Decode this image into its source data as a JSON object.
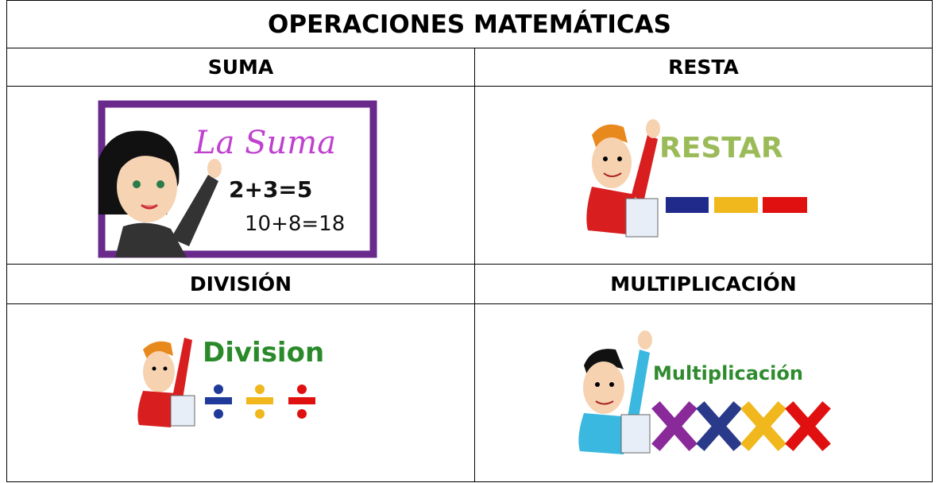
{
  "table": {
    "title": "OPERACIONES MATEMÁTICAS",
    "cells": [
      {
        "heading": "SUMA",
        "image_text": [
          "La Suma",
          "2+3=5",
          "10+8=18"
        ]
      },
      {
        "heading": "RESTA",
        "image_text": [
          "RESTAR"
        ]
      },
      {
        "heading": "DIVISIÓN",
        "image_text": [
          "Division"
        ]
      },
      {
        "heading": "MULTIPLICACIÓN",
        "image_text": [
          "Multiplicación"
        ]
      }
    ]
  }
}
